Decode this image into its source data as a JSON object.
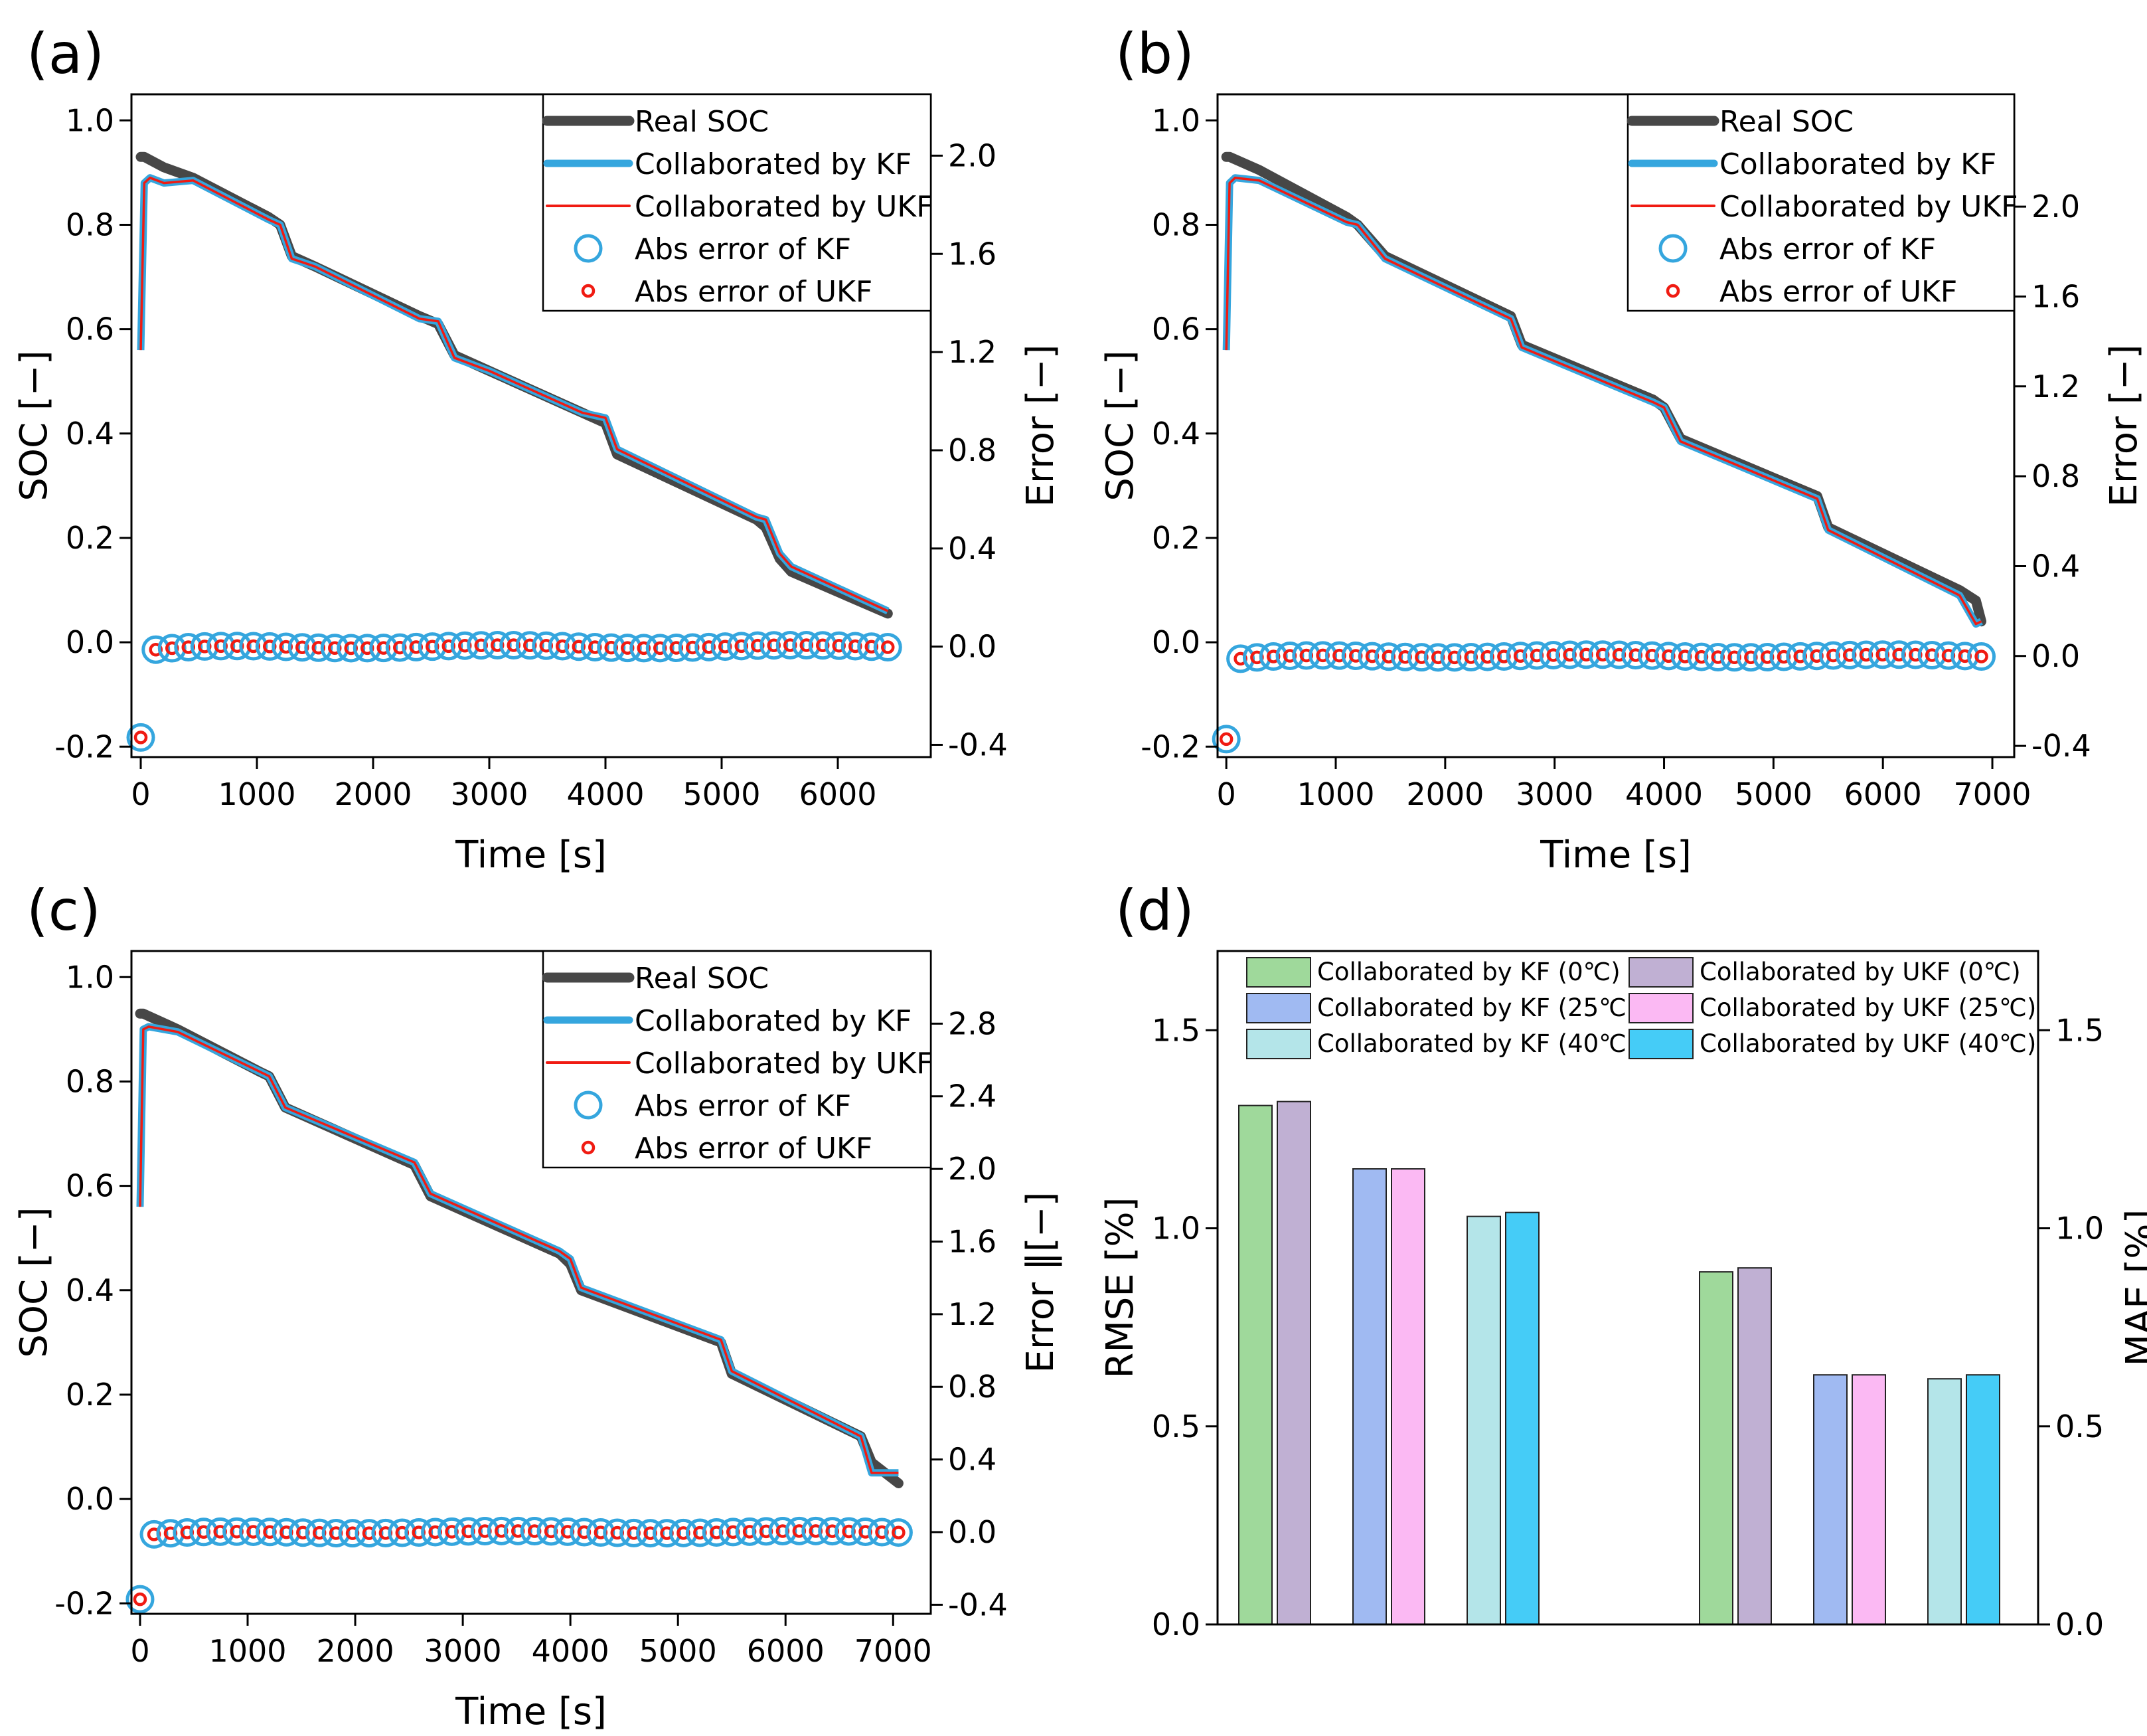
{
  "chart_data": [
    {
      "id": "a",
      "panel_label": "(a)",
      "type": "line",
      "xlabel": "Time [s]",
      "ylabel": "SOC [−]",
      "y2label": "Error [−]",
      "xlim": [
        -80,
        6800
      ],
      "ylim": [
        -0.22,
        1.05
      ],
      "y2lim": [
        -0.45,
        2.25
      ],
      "xticks": [
        0,
        1000,
        2000,
        3000,
        4000,
        5000,
        6000
      ],
      "yticks": [
        -0.2,
        0.0,
        0.2,
        0.4,
        0.6,
        0.8,
        1.0
      ],
      "y2ticks": [
        -0.4,
        0.0,
        0.4,
        0.8,
        1.2,
        1.6,
        2.0
      ],
      "legend": [
        "Real SOC",
        "Collaborated by KF",
        "Collaborated by UKF",
        "Abs error of KF",
        "Abs error of UKF"
      ],
      "legend_position": "top-right",
      "series": [
        {
          "name": "Real SOC",
          "x": [
            0,
            30,
            200,
            450,
            1100,
            1200,
            1300,
            1500,
            2400,
            2560,
            2700,
            3000,
            3800,
            4000,
            4100,
            5300,
            5380,
            5500,
            5600,
            6430
          ],
          "y": [
            0.93,
            0.93,
            0.91,
            0.89,
            0.815,
            0.8,
            0.74,
            0.72,
            0.625,
            0.61,
            0.55,
            0.52,
            0.44,
            0.42,
            0.36,
            0.235,
            0.22,
            0.16,
            0.135,
            0.055
          ]
        },
        {
          "name": "Collaborated by KF",
          "x": [
            0,
            30,
            80,
            200,
            450,
            1100,
            1200,
            1300,
            1500,
            2400,
            2560,
            2700,
            3000,
            3800,
            4000,
            4100,
            5300,
            5380,
            5500,
            5600,
            6430
          ],
          "y": [
            0.56,
            0.88,
            0.89,
            0.88,
            0.885,
            0.81,
            0.8,
            0.735,
            0.72,
            0.62,
            0.615,
            0.545,
            0.52,
            0.44,
            0.43,
            0.37,
            0.24,
            0.235,
            0.17,
            0.145,
            0.06
          ]
        },
        {
          "name": "Collaborated by UKF",
          "x": [
            0,
            30,
            80,
            200,
            450,
            1100,
            1200,
            1300,
            1500,
            2400,
            2560,
            2700,
            3000,
            3800,
            4000,
            4100,
            5300,
            5380,
            5500,
            5600,
            6430
          ],
          "y": [
            0.56,
            0.88,
            0.89,
            0.88,
            0.885,
            0.81,
            0.8,
            0.735,
            0.72,
            0.62,
            0.615,
            0.545,
            0.52,
            0.44,
            0.43,
            0.37,
            0.24,
            0.235,
            0.17,
            0.145,
            0.06
          ]
        },
        {
          "name": "Abs error of KF",
          "x_range": [
            0,
            6430
          ],
          "error_start": -0.37,
          "error_level": 0.0,
          "error_end": 0.0
        },
        {
          "name": "Abs error of UKF",
          "x_range": [
            0,
            6430
          ],
          "error_start": -0.37,
          "error_level": 0.0,
          "error_end": 0.0
        }
      ]
    },
    {
      "id": "b",
      "panel_label": "(b)",
      "type": "line",
      "xlabel": "Time [s]",
      "ylabel": "SOC [−]",
      "y2label": "Error [−]",
      "xlim": [
        -80,
        7200
      ],
      "ylim": [
        -0.22,
        1.05
      ],
      "y2lim": [
        -0.45,
        2.5
      ],
      "xticks": [
        0,
        1000,
        2000,
        3000,
        4000,
        5000,
        6000,
        7000
      ],
      "yticks": [
        -0.2,
        0.0,
        0.2,
        0.4,
        0.6,
        0.8,
        1.0
      ],
      "y2ticks": [
        -0.4,
        0.0,
        0.4,
        0.8,
        1.2,
        1.6,
        2.0
      ],
      "legend": [
        "Real SOC",
        "Collaborated by KF",
        "Collaborated by UKF",
        "Abs error of KF",
        "Abs error of UKF"
      ],
      "legend_position": "top-right",
      "series": [
        {
          "name": "Real SOC",
          "x": [
            0,
            30,
            300,
            1100,
            1200,
            1450,
            2600,
            2700,
            3900,
            4000,
            4150,
            5400,
            5500,
            6700,
            6850,
            6900
          ],
          "y": [
            0.93,
            0.93,
            0.905,
            0.815,
            0.8,
            0.74,
            0.625,
            0.57,
            0.465,
            0.45,
            0.39,
            0.28,
            0.22,
            0.1,
            0.08,
            0.04
          ]
        },
        {
          "name": "Collaborated by KF",
          "x": [
            0,
            30,
            80,
            300,
            1100,
            1200,
            1450,
            2600,
            2700,
            3900,
            4000,
            4150,
            5400,
            5500,
            6700,
            6850,
            6900
          ],
          "y": [
            0.56,
            0.88,
            0.89,
            0.885,
            0.805,
            0.8,
            0.735,
            0.62,
            0.565,
            0.46,
            0.45,
            0.385,
            0.275,
            0.215,
            0.09,
            0.035,
            0.04
          ]
        },
        {
          "name": "Collaborated by UKF",
          "x": [
            0,
            30,
            80,
            300,
            1100,
            1200,
            1450,
            2600,
            2700,
            3900,
            4000,
            4150,
            5400,
            5500,
            6700,
            6850,
            6900
          ],
          "y": [
            0.56,
            0.88,
            0.89,
            0.885,
            0.805,
            0.8,
            0.735,
            0.62,
            0.565,
            0.46,
            0.45,
            0.385,
            0.275,
            0.215,
            0.09,
            0.035,
            0.04
          ]
        },
        {
          "name": "Abs error of KF",
          "x_range": [
            0,
            6900
          ],
          "error_start": -0.37,
          "error_level": 0.0,
          "error_end": 0.0
        },
        {
          "name": "Abs error of UKF",
          "x_range": [
            0,
            6900
          ],
          "error_start": -0.37,
          "error_level": 0.0,
          "error_end": 0.0
        }
      ]
    },
    {
      "id": "c",
      "panel_label": "(c)",
      "type": "line",
      "xlabel": "Time [s]",
      "ylabel": "SOC [−]",
      "y2label": "Error ‖[−]",
      "xlim": [
        -80,
        7350
      ],
      "ylim": [
        -0.22,
        1.05
      ],
      "y2lim": [
        -0.45,
        3.2
      ],
      "xticks": [
        0,
        1000,
        2000,
        3000,
        4000,
        5000,
        6000,
        7000
      ],
      "yticks": [
        -0.2,
        0.0,
        0.2,
        0.4,
        0.6,
        0.8,
        1.0
      ],
      "y2ticks": [
        -0.4,
        0.0,
        0.4,
        0.8,
        1.2,
        1.6,
        2.0,
        2.4,
        2.8
      ],
      "legend": [
        "Real SOC",
        "Collaborated by KF",
        "Collaborated by UKF",
        "Abs error of KF",
        "Abs error of UKF"
      ],
      "legend_position": "top-right",
      "series": [
        {
          "name": "Real SOC",
          "x": [
            0,
            30,
            350,
            1100,
            1200,
            1350,
            2550,
            2700,
            3900,
            4000,
            4100,
            5400,
            5500,
            6700,
            6800,
            7050
          ],
          "y": [
            0.93,
            0.93,
            0.9,
            0.82,
            0.81,
            0.75,
            0.64,
            0.58,
            0.47,
            0.45,
            0.4,
            0.3,
            0.24,
            0.12,
            0.07,
            0.03
          ]
        },
        {
          "name": "Collaborated by KF",
          "x": [
            0,
            30,
            80,
            350,
            1100,
            1200,
            1350,
            2550,
            2700,
            3900,
            4000,
            4100,
            5400,
            5500,
            6700,
            6800,
            7050
          ],
          "y": [
            0.56,
            0.9,
            0.905,
            0.895,
            0.82,
            0.81,
            0.75,
            0.645,
            0.585,
            0.475,
            0.46,
            0.405,
            0.305,
            0.245,
            0.12,
            0.05,
            0.05
          ]
        },
        {
          "name": "Collaborated by UKF",
          "x": [
            0,
            30,
            80,
            350,
            1100,
            1200,
            1350,
            2550,
            2700,
            3900,
            4000,
            4100,
            5400,
            5500,
            6700,
            6800,
            7050
          ],
          "y": [
            0.56,
            0.9,
            0.905,
            0.895,
            0.82,
            0.81,
            0.75,
            0.645,
            0.585,
            0.475,
            0.46,
            0.405,
            0.305,
            0.245,
            0.12,
            0.05,
            0.05
          ]
        },
        {
          "name": "Abs error of KF",
          "x_range": [
            0,
            7050
          ],
          "error_start": -0.37,
          "error_level": 0.0,
          "error_end": 0.0
        },
        {
          "name": "Abs error of UKF",
          "x_range": [
            0,
            7050
          ],
          "error_start": -0.37,
          "error_level": 0.0,
          "error_end": 0.0
        }
      ]
    },
    {
      "id": "d",
      "panel_label": "(d)",
      "type": "bar",
      "ylabel": "RMSE [%]",
      "y2label": "MAE [%]",
      "ylim": [
        0,
        1.7
      ],
      "y2lim": [
        0,
        1.7
      ],
      "yticks": [
        0.0,
        0.5,
        1.0,
        1.5
      ],
      "y2ticks": [
        0.0,
        0.5,
        1.0,
        1.5
      ],
      "groups": [
        "RMSE",
        "MAE"
      ],
      "series": [
        {
          "name": "Collaborated by KF (0℃)",
          "color": "#9fd99b",
          "values": [
            1.31,
            0.89
          ]
        },
        {
          "name": "Collaborated by UKF (0℃)",
          "color": "#c0b0d3",
          "values": [
            1.32,
            0.9
          ]
        },
        {
          "name": "Collaborated by KF (25℃)",
          "color": "#a0baf2",
          "values": [
            1.15,
            0.63
          ]
        },
        {
          "name": "Collaborated by UKF (25℃)",
          "color": "#fbb9f3",
          "values": [
            1.15,
            0.63
          ]
        },
        {
          "name": "Collaborated by KF (40℃)",
          "color": "#b4e5e9",
          "values": [
            1.03,
            0.62
          ]
        },
        {
          "name": "Collaborated by UKF (40℃)",
          "color": "#45ccf7",
          "values": [
            1.04,
            0.63
          ]
        }
      ],
      "legend_position": "top"
    }
  ],
  "colors": {
    "real": "#474747",
    "kf": "#35a6de",
    "ukf": "#f01b12"
  }
}
